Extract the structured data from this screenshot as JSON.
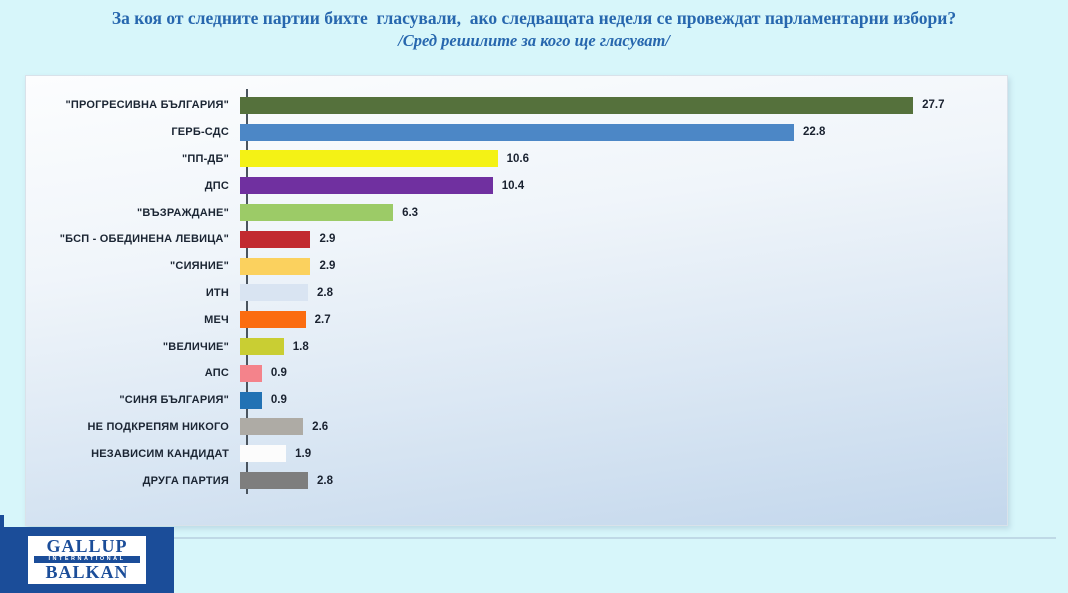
{
  "page": {
    "background_color": "#D7F6FA",
    "title": "За коя от следните партии бихте  гласували,  ако следващата неделя се провеждат парламентарни избори?",
    "subtitle": "/Сред решилите за кого ще гласуват/",
    "title_color": "#2767AE"
  },
  "chart_data": {
    "type": "bar",
    "orientation": "horizontal",
    "title": "За коя от следните партии бихте гласували, ако следващата неделя се провеждат парламентарни избори?",
    "subtitle": "/Сред решилите за кого ще гласуват/",
    "categories": [
      "\"ПРОГРЕСИВНА БЪЛГАРИЯ\"",
      "ГЕРБ-СДС",
      "\"ПП-ДБ\"",
      "ДПС",
      "\"ВЪЗРАЖДАНЕ\"",
      "\"БСП - ОБЕДИНЕНА ЛЕВИЦА\"",
      "\"СИЯНИЕ\"",
      "ИТН",
      "МЕЧ",
      "\"ВЕЛИЧИЕ\"",
      "АПС",
      "\"СИНЯ БЪЛГАРИЯ\"",
      "НЕ ПОДКРЕПЯМ НИКОГО",
      "НЕЗАВИСИМ КАНДИДАТ",
      "ДРУГА ПАРТИЯ"
    ],
    "values": [
      27.7,
      22.8,
      10.6,
      10.4,
      6.3,
      2.9,
      2.9,
      2.8,
      2.7,
      1.8,
      0.9,
      0.9,
      2.6,
      1.9,
      2.8
    ],
    "colors": [
      "#55713C",
      "#4C87C6",
      "#F4F215",
      "#7030A0",
      "#9CCB67",
      "#C22A30",
      "#FBD15E",
      "#D9E4F2",
      "#FB6C10",
      "#C9CE33",
      "#F4838B",
      "#2272B4",
      "#AEABA5",
      "#FCFCFC",
      "#7E7E7E"
    ],
    "xlim": [
      0,
      28
    ],
    "grid": false,
    "legend": false,
    "value_labels_shown": true,
    "axis_line_color": "#4A545E"
  },
  "logo": {
    "line1": "GALLUP",
    "line2": "INTERNATIONAL",
    "line3": "BALKAN",
    "bg_color": "#1B4D99"
  }
}
